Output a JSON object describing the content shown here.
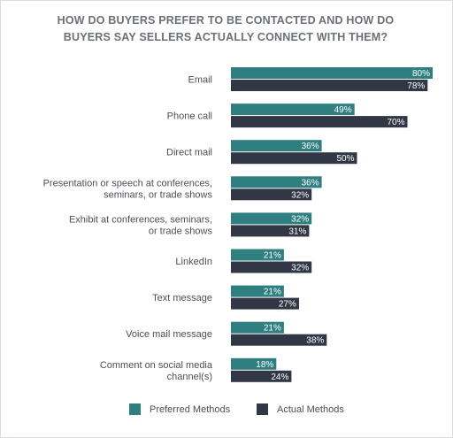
{
  "colors": {
    "preferred": "#2f7f80",
    "actual": "#313744",
    "preferred_label": "#ffffff",
    "actual_label": "#ffffff"
  },
  "legend": {
    "preferred": "Preferred Methods",
    "actual": "Actual Methods"
  },
  "chart_data": {
    "type": "bar",
    "orientation": "horizontal",
    "title_lines": [
      "HOW DO BUYERS PREFER TO BE CONTACTED AND HOW DO",
      "BUYERS SAY SELLERS ACTUALLY CONNECT WITH THEM?"
    ],
    "categories": [
      [
        "Email"
      ],
      [
        "Phone call"
      ],
      [
        "Direct mail"
      ],
      [
        "Presentation or speech at conferences,",
        "seminars, or trade shows"
      ],
      [
        "Exhibit at conferences, seminars,",
        "or trade shows"
      ],
      [
        "LinkedIn"
      ],
      [
        "Text message"
      ],
      [
        "Voice mail message"
      ],
      [
        "Comment on social media",
        "channel(s)"
      ]
    ],
    "series": [
      {
        "name": "Preferred Methods",
        "values": [
          80,
          49,
          36,
          36,
          32,
          21,
          21,
          21,
          18
        ]
      },
      {
        "name": "Actual Methods",
        "values": [
          78,
          70,
          50,
          32,
          31,
          32,
          27,
          38,
          24
        ]
      }
    ],
    "value_suffix": "%",
    "xlim": [
      0,
      100
    ],
    "grid": false,
    "legend_position": "bottom"
  }
}
